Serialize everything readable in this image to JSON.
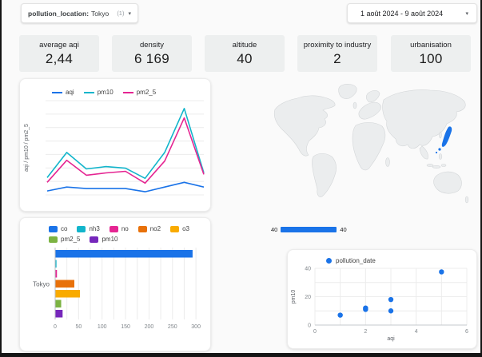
{
  "filter_bar": {
    "chip_label": "pollution_location:",
    "chip_value": "Tokyo",
    "chip_count": "(1)",
    "chip_caret": "▾",
    "date_range": "1 août 2024 - 9 août 2024",
    "date_caret": "▾"
  },
  "kpis": [
    {
      "label": "average aqi",
      "value": "2,44"
    },
    {
      "label": "density",
      "value": "6 169"
    },
    {
      "label": "altitude",
      "value": "40"
    },
    {
      "label": "proximity to industry",
      "value": "2"
    },
    {
      "label": "urbanisation",
      "value": "100"
    }
  ],
  "chart_data": [
    {
      "type": "line",
      "title": "",
      "xlabel": "",
      "ylabel": "aqi / pm10 / pm2_5",
      "x": [
        1,
        2,
        3,
        4,
        5,
        6,
        7,
        8,
        9
      ],
      "x_labels_shown": false,
      "ylim": [
        0,
        60
      ],
      "grid": "horizontal",
      "legend_position": "top",
      "series": [
        {
          "name": "aqi",
          "color": "#1a73e8",
          "values": [
            2.5,
            5,
            4,
            4,
            4,
            2,
            5,
            8,
            5
          ]
        },
        {
          "name": "pm10",
          "color": "#12b5cb",
          "values": [
            11,
            27,
            16.5,
            18,
            17,
            10.5,
            27,
            55,
            14
          ]
        },
        {
          "name": "pm2_5",
          "color": "#e52592",
          "values": [
            8,
            22,
            12.5,
            14,
            15,
            7.5,
            21.5,
            49,
            13
          ]
        }
      ]
    },
    {
      "type": "map",
      "title": "",
      "projection": "world",
      "land_color": "#ebedee",
      "land_border_color": "#d3d6d8",
      "highlight": {
        "name": "Japan",
        "metric": "altitude",
        "value": 40,
        "color": "#1a73e8"
      },
      "scale": {
        "min_label": "40",
        "max_label": "40",
        "color": "#1a73e8"
      }
    },
    {
      "type": "bar",
      "orientation": "horizontal",
      "title": "",
      "category": "Tokyo",
      "xlim": [
        0,
        310
      ],
      "xticks": [
        0,
        50,
        100,
        150,
        200,
        250,
        300
      ],
      "grid": "vertical",
      "legend_position": "top",
      "series": [
        {
          "name": "co",
          "color": "#1a73e8",
          "value": 292
        },
        {
          "name": "nh3",
          "color": "#12b5cb",
          "value": 2
        },
        {
          "name": "no",
          "color": "#e52592",
          "value": 3
        },
        {
          "name": "no2",
          "color": "#e8710a",
          "value": 40
        },
        {
          "name": "o3",
          "color": "#f9ab00",
          "value": 52
        },
        {
          "name": "pm2_5",
          "color": "#7cb342",
          "value": 12
        },
        {
          "name": "pm10",
          "color": "#7627bb",
          "value": 15
        }
      ]
    },
    {
      "type": "scatter",
      "title": "",
      "series_name": "pollution_date",
      "color": "#1a73e8",
      "xlabel": "aqi",
      "ylabel": "pm10",
      "xlim": [
        0,
        6
      ],
      "ylim": [
        0,
        40
      ],
      "xticks": [
        0,
        2,
        4,
        6
      ],
      "yticks": [
        0,
        20,
        40
      ],
      "grid": "both",
      "points": [
        [
          1,
          7
        ],
        [
          2,
          11
        ],
        [
          2,
          12
        ],
        [
          3,
          10
        ],
        [
          3,
          18
        ],
        [
          5,
          37.5
        ]
      ]
    }
  ]
}
